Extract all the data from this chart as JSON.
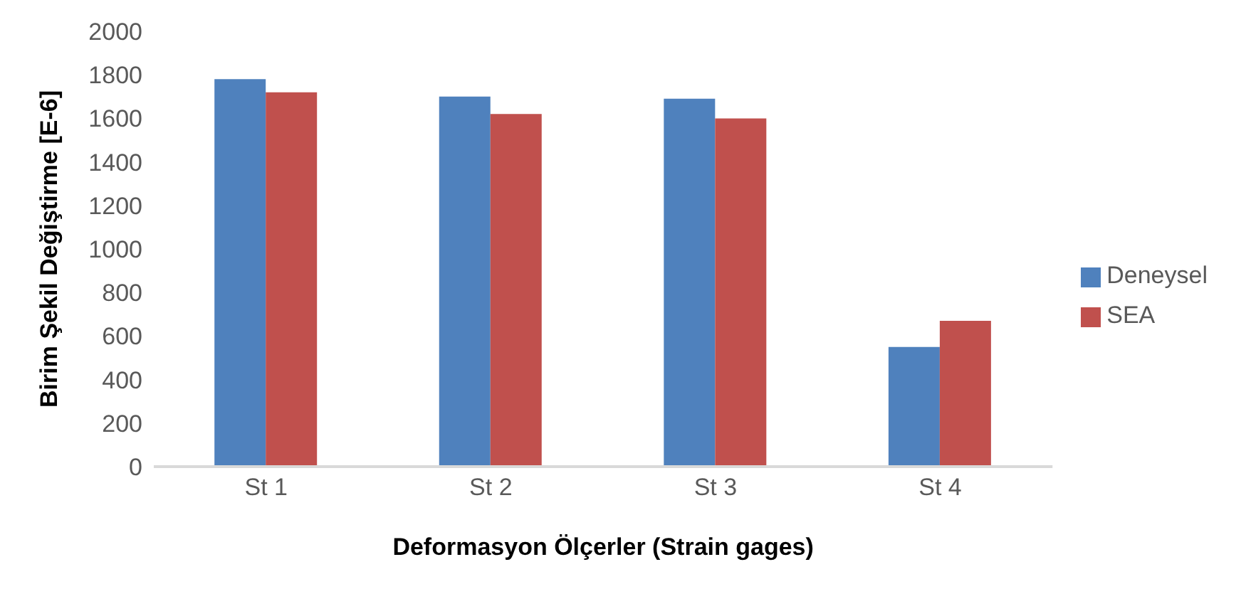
{
  "chart_data": {
    "type": "bar",
    "xlabel": "Deformasyon Ölçerler (Strain gages)",
    "ylabel": "Birim Şekil Değiştirme [E-6]",
    "categories": [
      "St 1",
      "St 2",
      "St 3",
      "St 4"
    ],
    "series": [
      {
        "name": "Deneysel",
        "color": "#4f81bd",
        "values": [
          1780,
          1700,
          1690,
          550
        ]
      },
      {
        "name": "SEA",
        "color": "#c0504d",
        "values": [
          1720,
          1620,
          1600,
          670
        ]
      }
    ],
    "ylim": [
      0,
      2000
    ],
    "yticks": [
      0,
      200,
      400,
      600,
      800,
      1000,
      1200,
      1400,
      1600,
      1800,
      2000
    ],
    "grid": false,
    "legend": "right"
  }
}
